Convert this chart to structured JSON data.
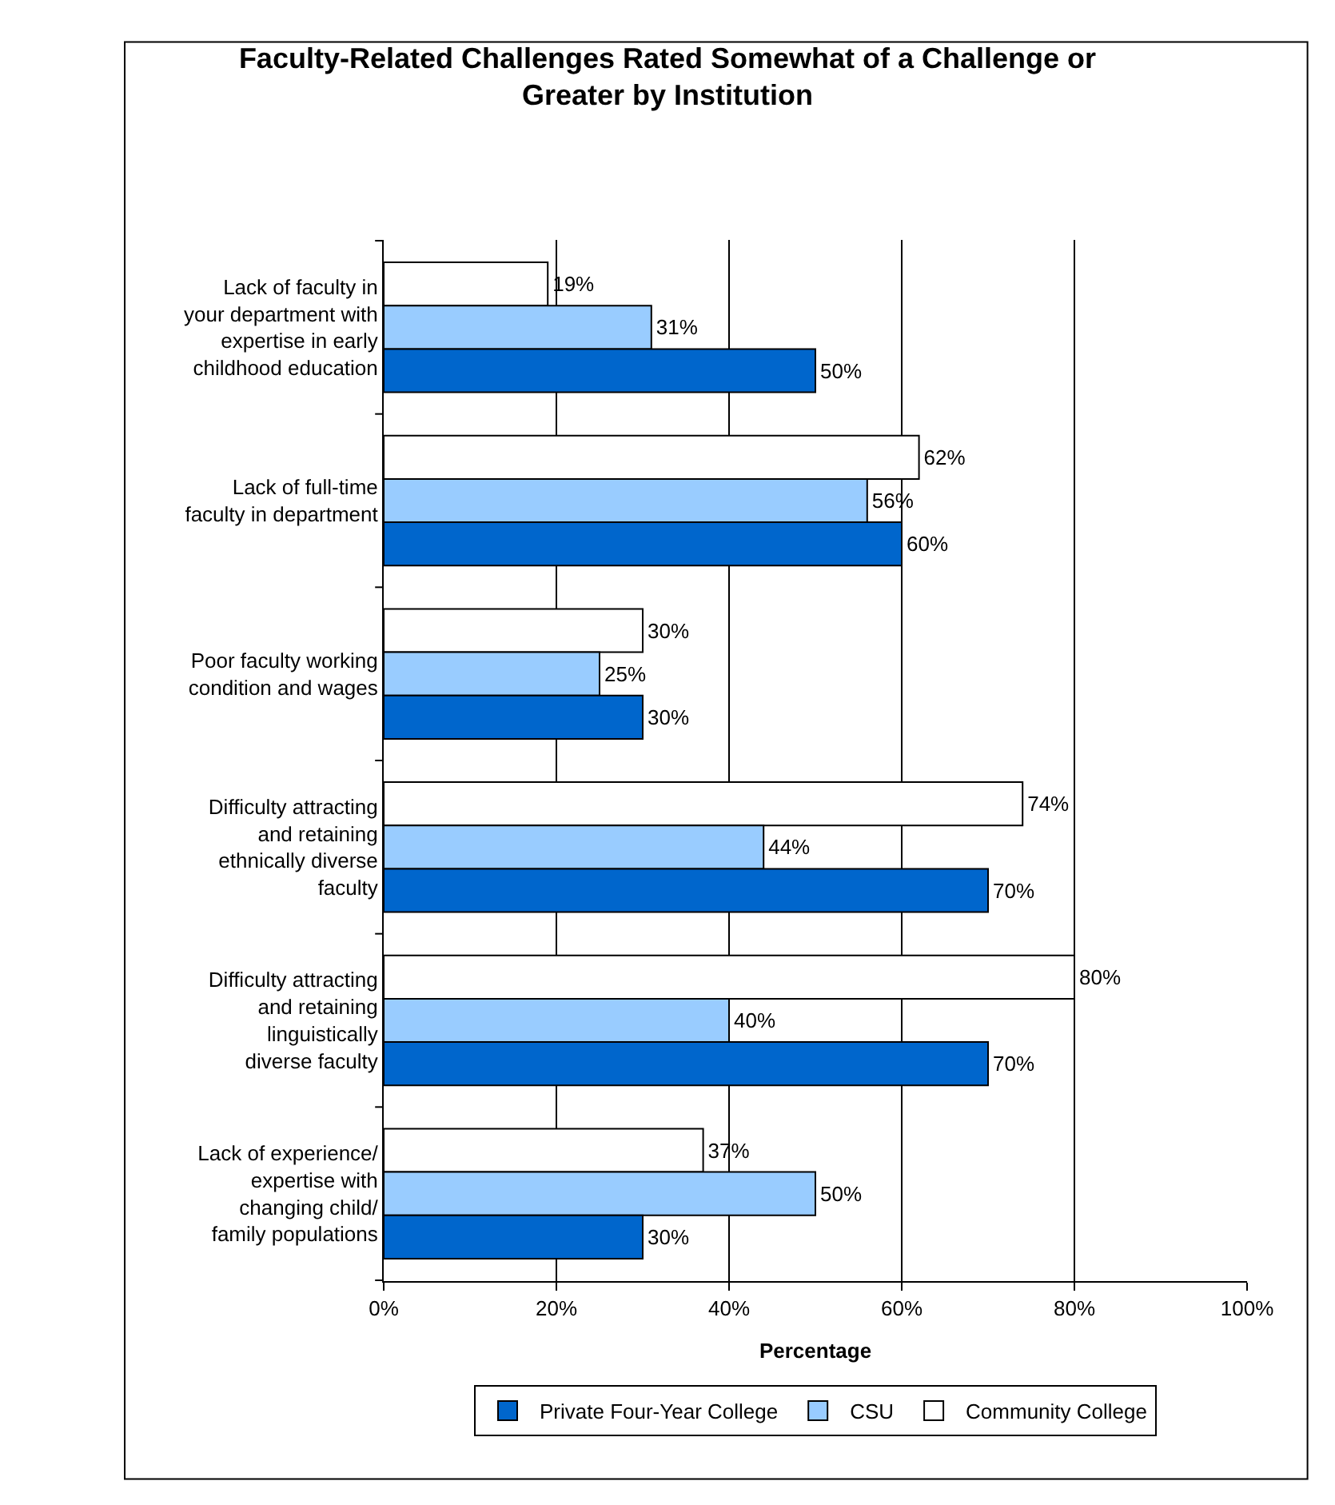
{
  "chart_data": {
    "type": "bar",
    "orientation": "horizontal",
    "title": "Faculty-Related Challenges Rated Somewhat of a Challenge or Greater by Institution",
    "xlabel": "Percentage",
    "categories": [
      "Lack of faculty in your department with expertise in early childhood education",
      "Lack of full-time faculty in department",
      "Poor faculty working condition and wages",
      "Difficulty attracting and retaining ethnically diverse faculty",
      "Difficulty attracting and retaining linguistically diverse faculty",
      "Lack of experience/ expertise with changing child/ family populations"
    ],
    "series": [
      {
        "name": "Private Four-Year College",
        "color": "#0066cc",
        "values": [
          50,
          60,
          30,
          70,
          70,
          30
        ],
        "value_labels": [
          "50%",
          "60%",
          "30%",
          "70%",
          "70%",
          "30%"
        ]
      },
      {
        "name": "CSU",
        "color": "#99ccff",
        "values": [
          31,
          56,
          25,
          44,
          40,
          50
        ],
        "value_labels": [
          "31%",
          "56%",
          "25%",
          "44%",
          "40%",
          "50%"
        ]
      },
      {
        "name": "Community College",
        "color": "#ffffff",
        "values": [
          19,
          62,
          30,
          74,
          80,
          37
        ],
        "value_labels": [
          "19%",
          "62%",
          "30%",
          "74%",
          "80%",
          "37%"
        ]
      }
    ],
    "xlim": [
      0,
      100
    ],
    "xticks": [
      {
        "value": 0,
        "label": "0%"
      },
      {
        "value": 20,
        "label": "20%"
      },
      {
        "value": 40,
        "label": "40%"
      },
      {
        "value": 60,
        "label": "60%"
      },
      {
        "value": 80,
        "label": "80%"
      },
      {
        "value": 100,
        "label": "100%"
      }
    ],
    "grid": "x",
    "legend": "bottom"
  }
}
